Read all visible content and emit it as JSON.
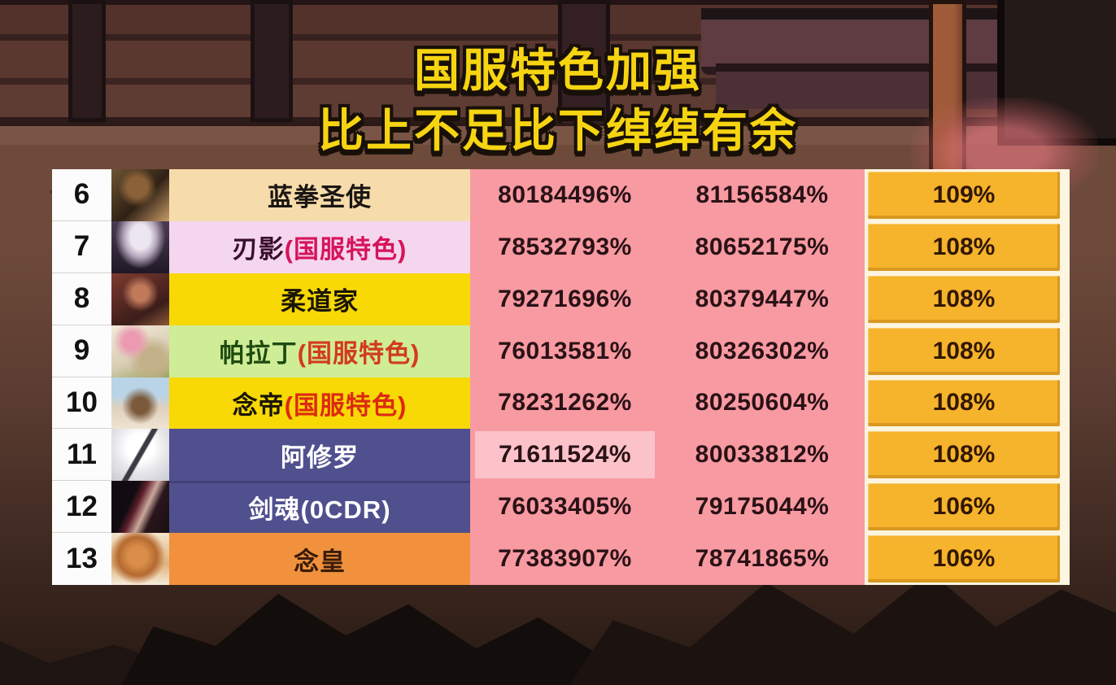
{
  "title": {
    "line1": "国服特色加强",
    "line2": "比上不足比下绰绰有余"
  },
  "colors": {
    "title_yellow": "#f6d411",
    "pink": "#f89aa2",
    "pink_hl": "#fbc3c9",
    "ratio_bg": "#f6b32c",
    "ratio_frame": "#fdf5df",
    "table_bg": "#fcfcfc",
    "value_ink": "#2a1216",
    "ratio_ink": "#311703",
    "rank_ink": "#111111"
  },
  "table": {
    "rows": [
      {
        "rank": "6",
        "name": "蓝拳圣使",
        "suffix": "",
        "name_bg": "#f7dcab",
        "name_color": "#1a1512",
        "suffix_color": "",
        "value1": "80184496%",
        "value2": "81156584%",
        "ratio": "109%",
        "portrait": "bluefist",
        "highlight1": false
      },
      {
        "rank": "7",
        "name": "刃影",
        "suffix": "(国服特色)",
        "name_bg": "#f4d6ef",
        "name_color": "#3a0f2e",
        "suffix_color": "#d6145a",
        "value1": "78532793%",
        "value2": "80652175%",
        "ratio": "108%",
        "portrait": "bladeshadow",
        "highlight1": false
      },
      {
        "rank": "8",
        "name": "柔道家",
        "suffix": "",
        "name_bg": "#f8d805",
        "name_color": "#1a1505",
        "suffix_color": "",
        "value1": "79271696%",
        "value2": "80379447%",
        "ratio": "108%",
        "portrait": "judoka",
        "highlight1": false
      },
      {
        "rank": "9",
        "name": "帕拉丁",
        "suffix": "(国服特色)",
        "name_bg": "#cfec96",
        "name_color": "#1d4a0f",
        "suffix_color": "#d23b1e",
        "value1": "76013581%",
        "value2": "80326302%",
        "ratio": "108%",
        "portrait": "paladin",
        "highlight1": false
      },
      {
        "rank": "10",
        "name": "念帝",
        "suffix": "(国服特色)",
        "name_bg": "#f8d805",
        "name_color": "#1a1505",
        "suffix_color": "#dc2a10",
        "value1": "78231262%",
        "value2": "80250604%",
        "ratio": "108%",
        "portrait": "niandi",
        "highlight1": false
      },
      {
        "rank": "11",
        "name": "阿修罗",
        "suffix": "",
        "name_bg": "#50508f",
        "name_color": "#ffffff",
        "suffix_color": "",
        "value1": "71611524%",
        "value2": "80033812%",
        "ratio": "108%",
        "portrait": "asura",
        "highlight1": true
      },
      {
        "rank": "12",
        "name": "剑魂(0CDR)",
        "suffix": "",
        "name_bg": "#50508f",
        "name_color": "#ffffff",
        "suffix_color": "",
        "value1": "76033405%",
        "value2": "79175044%",
        "ratio": "106%",
        "portrait": "swordsoul",
        "highlight1": false
      },
      {
        "rank": "13",
        "name": "念皇",
        "suffix": "",
        "name_bg": "#f2913d",
        "name_color": "#3a1c08",
        "suffix_color": "",
        "value1": "77383907%",
        "value2": "78741865%",
        "ratio": "106%",
        "portrait": "nianhuang",
        "highlight1": false
      }
    ]
  },
  "chart_data": {
    "type": "table",
    "title": "国服特色加强 比上不足比下绰绰有余",
    "rows": [
      {
        "rank": 6,
        "name": "蓝拳圣使",
        "value1": "80184496%",
        "value2": "81156584%",
        "ratio": "109%"
      },
      {
        "rank": 7,
        "name": "刃影(国服特色)",
        "value1": "78532793%",
        "value2": "80652175%",
        "ratio": "108%"
      },
      {
        "rank": 8,
        "name": "柔道家",
        "value1": "79271696%",
        "value2": "80379447%",
        "ratio": "108%"
      },
      {
        "rank": 9,
        "name": "帕拉丁(国服特色)",
        "value1": "76013581%",
        "value2": "80326302%",
        "ratio": "108%"
      },
      {
        "rank": 10,
        "name": "念帝(国服特色)",
        "value1": "78231262%",
        "value2": "80250604%",
        "ratio": "108%"
      },
      {
        "rank": 11,
        "name": "阿修罗",
        "value1": "71611524%",
        "value2": "80033812%",
        "ratio": "108%"
      },
      {
        "rank": 12,
        "name": "剑魂(0CDR)",
        "value1": "76033405%",
        "value2": "79175044%",
        "ratio": "106%"
      },
      {
        "rank": 13,
        "name": "念皇",
        "value1": "77383907%",
        "value2": "78741865%",
        "ratio": "106%"
      }
    ]
  }
}
